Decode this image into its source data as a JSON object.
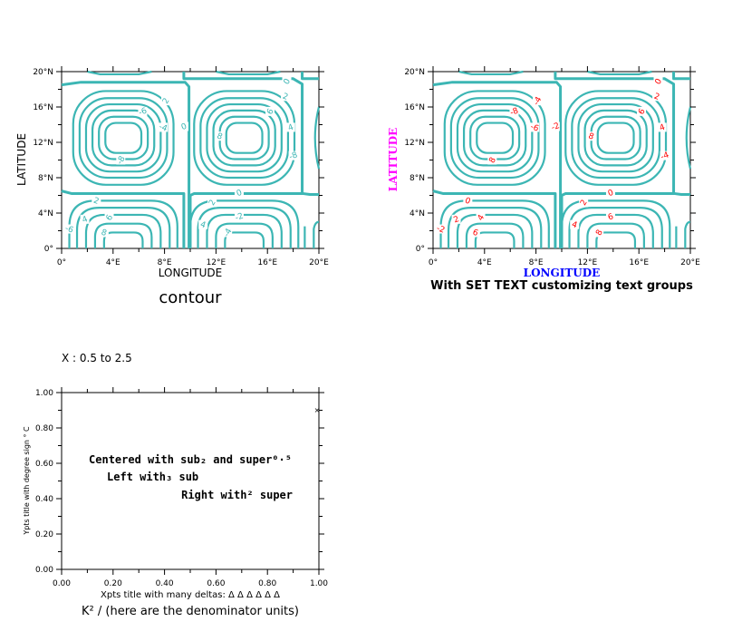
{
  "colors": {
    "contour_line": "#3cb6b4",
    "panel2_label_color": "#ff0000",
    "panel2_xlabel_color": "#0000ff",
    "panel2_ylabel_color": "#ff00ff"
  },
  "panel1": {
    "xlabel": "LONGITUDE",
    "ylabel": "LATITUDE",
    "title": "contour",
    "xticks": [
      "0°",
      "4°E",
      "8°E",
      "12°E",
      "16°E",
      "20°E"
    ],
    "yticks": [
      "0°",
      "4°N",
      "8°N",
      "12°N",
      "16°N",
      "20°N"
    ]
  },
  "panel2": {
    "xlabel": "LONGITUDE",
    "ylabel": "LATITUDE",
    "title": "With SET TEXT customizing text groups",
    "xticks": [
      "0°",
      "4°E",
      "8°E",
      "12°E",
      "16°E",
      "20°E"
    ],
    "yticks": [
      "0°",
      "4°N",
      "8°N",
      "12°N",
      "16°N",
      "20°N"
    ]
  },
  "panel3": {
    "header": "X : 0.5 to 2.5",
    "xlabel": "Xpts title with many deltas: Δ Δ Δ Δ Δ Δ",
    "ylabel": "Ypts title with degree sign ° C",
    "subtitle": "K² / (here are the denominator units)",
    "xticks": [
      "0.00",
      "0.20",
      "0.40",
      "0.60",
      "0.80",
      "1.00"
    ],
    "yticks": [
      "0.00",
      "0.20",
      "0.40",
      "0.60",
      "0.80",
      "1.00"
    ],
    "text_centered": "Centered with sub₂ and super⁰·⁵",
    "text_left": "Left with₃ sub",
    "text_right": "Right with² super",
    "marker": "×"
  },
  "chart_data": [
    {
      "type": "contour",
      "xlim": [
        0,
        20
      ],
      "ylim": [
        0,
        20
      ],
      "xlabel": "LONGITUDE",
      "ylabel": "LATITUDE",
      "title": "contour",
      "contour_levels": [
        -8,
        -6,
        -4,
        -2,
        0,
        2,
        4,
        6,
        8
      ],
      "contour_labels": [
        "0",
        "2",
        "4",
        "6",
        "8",
        "0",
        "2",
        "-4",
        "-6",
        "-8",
        "2",
        "4",
        "6",
        "8",
        "0",
        "2",
        "4",
        "-2",
        "-4",
        "-6",
        "-8"
      ]
    },
    {
      "type": "contour",
      "xlim": [
        0,
        20
      ],
      "ylim": [
        0,
        20
      ],
      "xlabel": "LONGITUDE",
      "ylabel": "LATITUDE",
      "title": "With SET TEXT customizing text groups",
      "contour_levels": [
        -8,
        -6,
        -4,
        -2,
        0,
        2,
        4,
        6,
        8
      ],
      "contour_labels": [
        "0",
        "2",
        "4",
        "6",
        "8",
        "-2",
        "-4",
        "-6",
        "-8",
        "8",
        "0",
        "2",
        "4",
        "6",
        "0",
        "2",
        "4",
        "6",
        "8",
        "-2",
        "-4"
      ]
    },
    {
      "type": "scatter",
      "xlim": [
        0,
        1
      ],
      "ylim": [
        0,
        1
      ],
      "xlabel": "Xpts title with many deltas: Δ Δ Δ Δ Δ Δ",
      "ylabel": "Ypts title with degree sign ° C",
      "series": [
        {
          "x": [
            1.0
          ],
          "y": [
            1.0
          ]
        }
      ]
    }
  ]
}
